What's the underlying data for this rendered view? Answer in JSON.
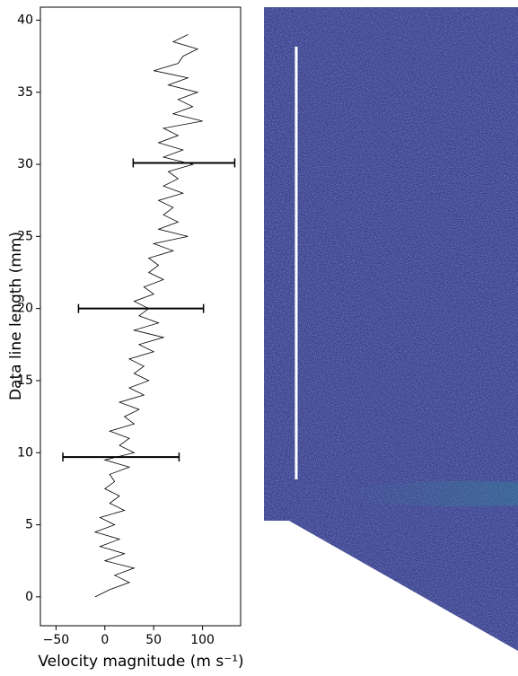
{
  "chart_data": {
    "type": "line",
    "orientation": "horizontal",
    "xlabel": "Velocity magnitude (m s⁻¹)",
    "ylabel": "Data line length (mm)",
    "xlim": [
      -66,
      139
    ],
    "ylim": [
      -2,
      40.9
    ],
    "xticks": [
      {
        "value": -50,
        "label": "−50"
      },
      0,
      50,
      100
    ],
    "yticks": [
      0,
      5,
      10,
      15,
      20,
      25,
      30,
      35,
      40
    ],
    "y": [
      0,
      0.5,
      1,
      1.5,
      2,
      2.5,
      3,
      3.5,
      4,
      4.5,
      5,
      5.5,
      6,
      6.5,
      7,
      7.5,
      8,
      8.5,
      9,
      9.5,
      10,
      10.5,
      11,
      11.5,
      12,
      12.5,
      13,
      13.5,
      14,
      14.5,
      15,
      15.5,
      16,
      16.5,
      17,
      17.5,
      18,
      18.5,
      19,
      19.5,
      20,
      20.5,
      21,
      21.5,
      22,
      22.5,
      23,
      23.5,
      24,
      24.5,
      25,
      25.5,
      26,
      26.5,
      27,
      27.5,
      28,
      28.5,
      29,
      29.5,
      30,
      30.5,
      31,
      31.5,
      32,
      32.5,
      33,
      33.5,
      34,
      34.5,
      35,
      35.5,
      36,
      36.5,
      37,
      37.5,
      38,
      38.5,
      39
    ],
    "series": [
      {
        "color": "#000000",
        "values": [
          -10,
          5,
          25,
          10,
          30,
          0,
          20,
          -5,
          15,
          -10,
          10,
          -5,
          20,
          5,
          15,
          0,
          10,
          5,
          25,
          0,
          30,
          15,
          25,
          5,
          30,
          20,
          35,
          15,
          40,
          25,
          45,
          30,
          40,
          25,
          50,
          35,
          60,
          30,
          55,
          35,
          45,
          30,
          50,
          40,
          60,
          45,
          55,
          45,
          70,
          50,
          85,
          55,
          75,
          60,
          70,
          55,
          80,
          60,
          75,
          65,
          90,
          60,
          80,
          55,
          75,
          60,
          100,
          70,
          90,
          75,
          95,
          65,
          85,
          50,
          75,
          80,
          95,
          70,
          85
        ]
      }
    ],
    "error_bars": [
      {
        "y": 30.1,
        "value": 81,
        "error": 52
      },
      {
        "y": 20,
        "value": 37,
        "error": 64
      },
      {
        "y": 9.7,
        "value": 16.5,
        "error": 59.5
      }
    ],
    "error_color": "#000000"
  }
}
